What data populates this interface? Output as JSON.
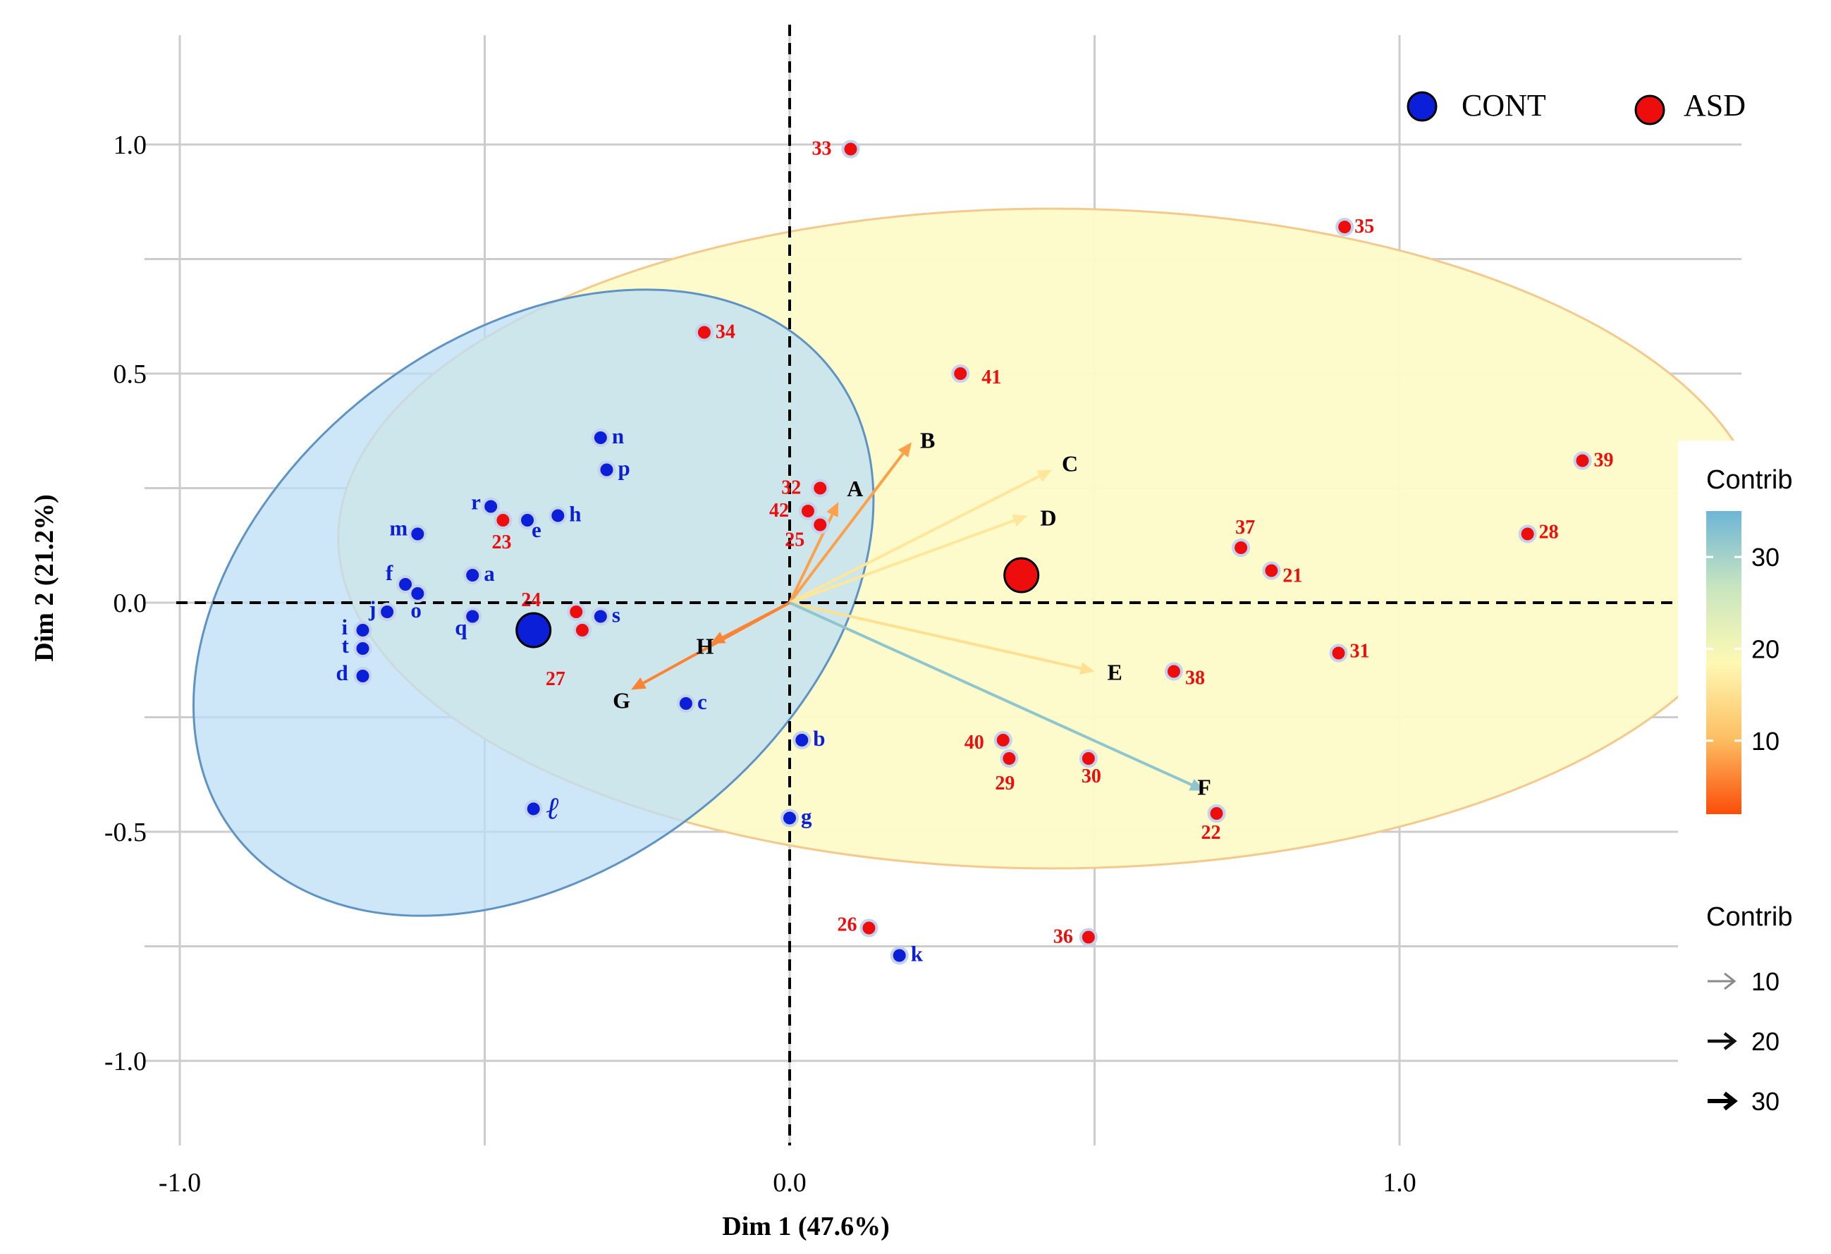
{
  "chart_data": {
    "type": "scatter",
    "subtype": "pca-biplot",
    "xlabel": "Dim 1 (47.6%)",
    "ylabel": "Dim 2 (21.2%)",
    "xlim": [
      -1.0,
      1.5
    ],
    "ylim": [
      -1.2,
      1.25
    ],
    "x_ticks": [
      {
        "value": -1.0,
        "label": "-1.0"
      },
      {
        "value": 0.0,
        "label": "0.0"
      },
      {
        "value": 1.0,
        "label": "1.0"
      }
    ],
    "y_ticks": [
      {
        "value": 1.0,
        "label": "1.0"
      },
      {
        "value": 0.5,
        "label": "0.5"
      },
      {
        "value": 0.0,
        "label": "0.0"
      },
      {
        "value": -0.5,
        "label": "-0.5"
      },
      {
        "value": -1.0,
        "label": "-1.0"
      }
    ],
    "x_grid": [
      -1.0,
      -0.5,
      0.0,
      0.5,
      1.0
    ],
    "y_grid": [
      1.0,
      0.75,
      0.5,
      0.25,
      0.0,
      -0.25,
      -0.5,
      -0.75,
      -1.0
    ],
    "colors": {
      "cont": "#0b1fd8",
      "asd": "#ee0d0d",
      "cont_ellipse_fill": "#bcdff7",
      "cont_ellipse_stroke": "#5f93c4",
      "asd_ellipse_fill": "#fdfbc8",
      "asd_ellipse_stroke": "#f4c98e",
      "grid": "#cccccc"
    },
    "legend": {
      "position": "top-right",
      "groups": [
        {
          "key": "cont",
          "label": "CONT"
        },
        {
          "key": "asd",
          "label": "ASD"
        }
      ]
    },
    "ellipses": [
      {
        "group": "cont",
        "center": [
          -0.42,
          0.0
        ],
        "rx": 0.62,
        "ry": 0.58,
        "rotation_deg": -38
      },
      {
        "group": "asd",
        "center": [
          0.43,
          0.14
        ],
        "rx": 1.17,
        "ry": 0.72,
        "rotation_deg": 0
      }
    ],
    "centroids": [
      {
        "group": "cont",
        "x": -0.42,
        "y": -0.06
      },
      {
        "group": "asd",
        "x": 0.38,
        "y": 0.06
      }
    ],
    "series": [
      {
        "name": "CONT",
        "points": [
          {
            "label": "n",
            "x": -0.31,
            "y": 0.36
          },
          {
            "label": "p",
            "x": -0.3,
            "y": 0.29
          },
          {
            "label": "r",
            "x": -0.49,
            "y": 0.21
          },
          {
            "label": "e",
            "x": -0.43,
            "y": 0.18
          },
          {
            "label": "h",
            "x": -0.38,
            "y": 0.19
          },
          {
            "label": "m",
            "x": -0.61,
            "y": 0.15
          },
          {
            "label": "a",
            "x": -0.52,
            "y": 0.06
          },
          {
            "label": "f",
            "x": -0.63,
            "y": 0.04
          },
          {
            "label": "o",
            "x": -0.61,
            "y": 0.02
          },
          {
            "label": "j",
            "x": -0.66,
            "y": -0.02
          },
          {
            "label": "q",
            "x": -0.52,
            "y": -0.03
          },
          {
            "label": "s",
            "x": -0.31,
            "y": -0.03
          },
          {
            "label": "i",
            "x": -0.7,
            "y": -0.06
          },
          {
            "label": "t",
            "x": -0.7,
            "y": -0.1
          },
          {
            "label": "d",
            "x": -0.7,
            "y": -0.16
          },
          {
            "label": "c",
            "x": -0.17,
            "y": -0.22
          },
          {
            "label": "b",
            "x": 0.02,
            "y": -0.3
          },
          {
            "label": "ℓ",
            "x": -0.42,
            "y": -0.45
          },
          {
            "label": "g",
            "x": 0.0,
            "y": -0.47
          },
          {
            "label": "k",
            "x": 0.18,
            "y": -0.77
          }
        ]
      },
      {
        "name": "ASD",
        "points": [
          {
            "label": "33",
            "x": 0.1,
            "y": 0.99
          },
          {
            "label": "35",
            "x": 0.91,
            "y": 0.82
          },
          {
            "label": "34",
            "x": -0.14,
            "y": 0.59
          },
          {
            "label": "41",
            "x": 0.28,
            "y": 0.5
          },
          {
            "label": "39",
            "x": 1.3,
            "y": 0.31
          },
          {
            "label": "32",
            "x": 0.05,
            "y": 0.25
          },
          {
            "label": "42",
            "x": 0.03,
            "y": 0.2
          },
          {
            "label": "25",
            "x": 0.05,
            "y": 0.17
          },
          {
            "label": "23",
            "x": -0.47,
            "y": 0.18
          },
          {
            "label": "28",
            "x": 1.21,
            "y": 0.15
          },
          {
            "label": "37",
            "x": 0.74,
            "y": 0.12
          },
          {
            "label": "21",
            "x": 0.79,
            "y": 0.07
          },
          {
            "label": "24",
            "x": -0.35,
            "y": -0.02
          },
          {
            "label": "27",
            "x": -0.34,
            "y": -0.06
          },
          {
            "label": "31",
            "x": 0.9,
            "y": -0.11
          },
          {
            "label": "38",
            "x": 0.63,
            "y": -0.15
          },
          {
            "label": "40",
            "x": 0.35,
            "y": -0.3
          },
          {
            "label": "29",
            "x": 0.36,
            "y": -0.34
          },
          {
            "label": "30",
            "x": 0.49,
            "y": -0.34
          },
          {
            "label": "22",
            "x": 0.7,
            "y": -0.46
          },
          {
            "label": "26",
            "x": 0.13,
            "y": -0.71
          },
          {
            "label": "36",
            "x": 0.49,
            "y": -0.73
          }
        ]
      }
    ],
    "loadings": [
      {
        "label": "A",
        "x": 0.08,
        "y": 0.22,
        "contrib": 8
      },
      {
        "label": "B",
        "x": 0.2,
        "y": 0.35,
        "contrib": 8
      },
      {
        "label": "C",
        "x": 0.43,
        "y": 0.29,
        "contrib": 16
      },
      {
        "label": "D",
        "x": 0.39,
        "y": 0.19,
        "contrib": 16
      },
      {
        "label": "E",
        "x": 0.5,
        "y": -0.15,
        "contrib": 15
      },
      {
        "label": "F",
        "x": 0.68,
        "y": -0.41,
        "contrib": 32
      },
      {
        "label": "G",
        "x": -0.26,
        "y": -0.19,
        "contrib": 6
      },
      {
        "label": "H",
        "x": -0.13,
        "y": -0.09,
        "contrib": 6
      }
    ],
    "colorbar": {
      "title": "Contrib",
      "range": [
        2,
        35
      ],
      "ticks": [
        30,
        20,
        10
      ],
      "stops": [
        "#fa4d08",
        "#fdbf63",
        "#fef9b4",
        "#c8e5c0",
        "#6eb5d6"
      ]
    },
    "size_legend": {
      "title": "Contrib",
      "entries": [
        {
          "label": "10"
        },
        {
          "label": "20"
        },
        {
          "label": "30"
        }
      ]
    }
  }
}
